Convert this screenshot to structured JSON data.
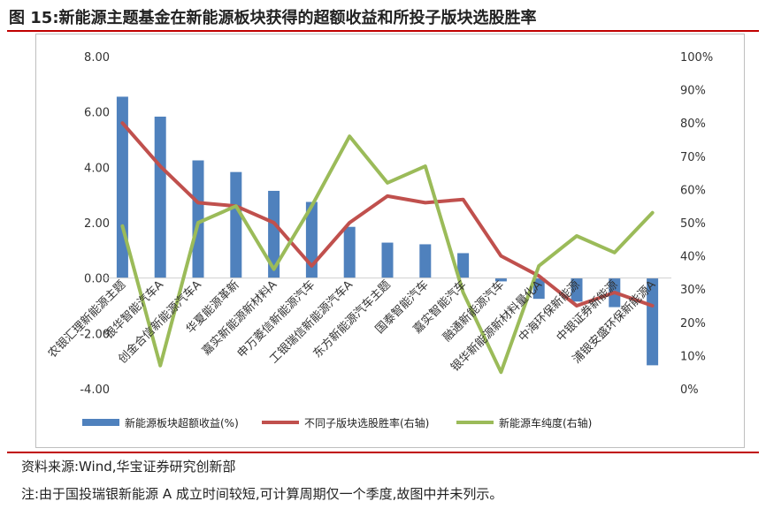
{
  "header": {
    "title": "图 15:新能源主题基金在新能源板块获得的超额收益和所投子版块选股胜率"
  },
  "footer": {
    "source": "资料来源:Wind,华宝证券研究创新部",
    "note": "注:由于国投瑞银新能源 A 成立时间较短,可计算周期仅一个季度,故图中并未列示。"
  },
  "chart_data": {
    "type": "bar",
    "categories": [
      "农银汇理新能源主题",
      "银华智能汽车A",
      "创金合信新能源汽车A",
      "华夏能源革新",
      "嘉实新能源新材料A",
      "申万菱信新能源汽车",
      "工银瑞信新能源汽车A",
      "东方新能源汽车主题",
      "国泰智能汽车",
      "嘉实智能汽车",
      "融通新能源汽车",
      "银华新能源新材料量化A",
      "中海环保新能源",
      "中银证券新能源",
      "浦银安盛环保新能源A"
    ],
    "ylim": [
      -4,
      8
    ],
    "y2lim": [
      0,
      100
    ],
    "y_ticks": [
      "8.00",
      "6.00",
      "4.00",
      "2.00",
      "0.00",
      "-2.00",
      "-4.00"
    ],
    "y2_ticks": [
      "100%",
      "90%",
      "80%",
      "70%",
      "60%",
      "50%",
      "40%",
      "30%",
      "20%",
      "10%",
      "0%"
    ],
    "series": [
      {
        "name": "新能源板块超额收益(%)",
        "kind": "bar",
        "axis": "left",
        "color": "#4f81bd",
        "values": [
          6.55,
          5.83,
          4.25,
          3.83,
          3.15,
          2.75,
          1.85,
          1.28,
          1.22,
          0.9,
          -0.12,
          -0.75,
          -0.85,
          -1.05,
          -3.15
        ]
      },
      {
        "name": "不同子版块选股胜率(右轴)",
        "kind": "line",
        "axis": "right",
        "color": "#c0504d",
        "values": [
          80,
          67,
          56,
          55,
          50,
          37,
          50,
          58,
          56,
          57,
          40,
          34,
          25,
          29,
          25
        ]
      },
      {
        "name": "新能源车纯度(右轴)",
        "kind": "line",
        "axis": "right",
        "color": "#9bbb59",
        "values": [
          49,
          7,
          50,
          55,
          36,
          55,
          76,
          62,
          67,
          29,
          5,
          37,
          46,
          41,
          53
        ]
      }
    ],
    "legend_position": "bottom",
    "grid": false
  }
}
